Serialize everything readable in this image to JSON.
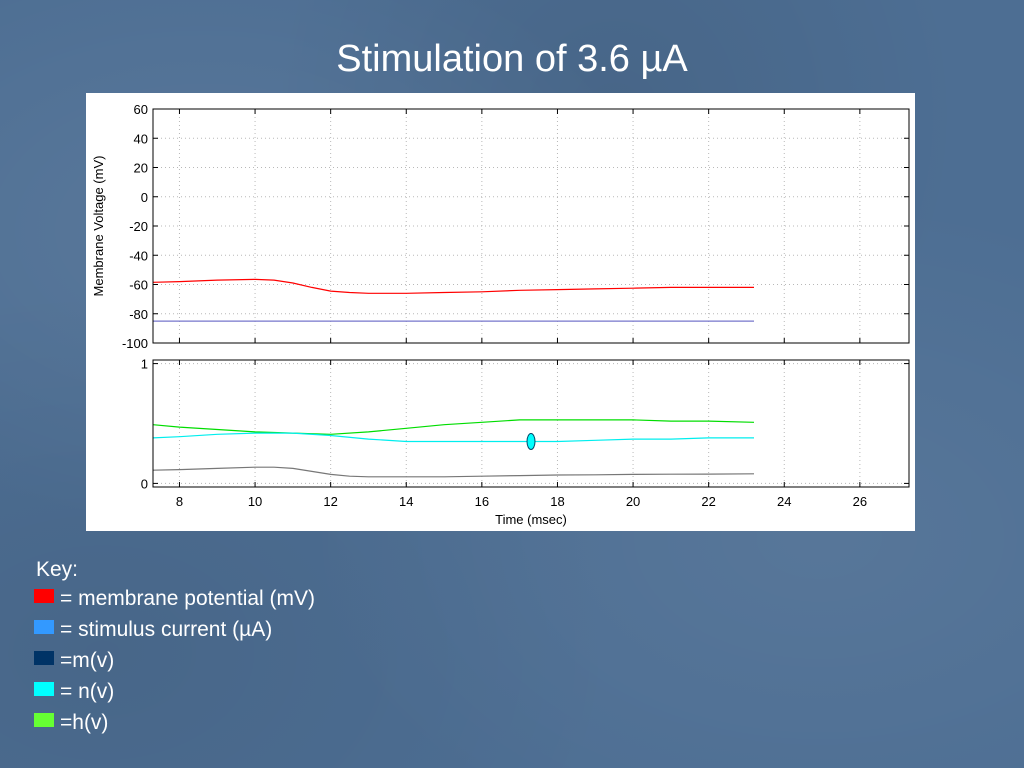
{
  "slide": {
    "title": "Stimulation of 3.6 µA"
  },
  "key": {
    "title": "Key:",
    "items": [
      {
        "label": "= membrane potential (mV)",
        "color": "#ff0000"
      },
      {
        "label": "= stimulus current (µA)",
        "color": "#3399ff"
      },
      {
        "label": "=m(v)",
        "color": "#003366"
      },
      {
        "label": "= n(v)",
        "color": "#00ffff"
      },
      {
        "label": "=h(v)",
        "color": "#66ff33"
      }
    ]
  },
  "chart_data": [
    {
      "type": "line",
      "ylabel": "Membrane Voltage (mV)",
      "xlim": [
        7.3,
        27.3
      ],
      "ylim": [
        -100,
        60
      ],
      "yticks": [
        -100,
        -80,
        -60,
        -40,
        -20,
        0,
        20,
        40,
        60
      ],
      "xticks": [
        8,
        10,
        12,
        14,
        16,
        18,
        20,
        22,
        24,
        26
      ],
      "grid": true,
      "series": [
        {
          "color": "#ff0000",
          "x": [
            7.3,
            8,
            9,
            10,
            10.5,
            11,
            11.5,
            12,
            12.5,
            13,
            13.5,
            14,
            15,
            16,
            17,
            18,
            19,
            20,
            21,
            22,
            23.2
          ],
          "y": [
            -58.5,
            -58.0,
            -57.0,
            -56.5,
            -57.0,
            -59.0,
            -62.0,
            -64.5,
            -65.5,
            -66.0,
            -66.0,
            -66.0,
            -65.5,
            -65.0,
            -64.0,
            -63.5,
            -63.0,
            -62.5,
            -62.0,
            -62.0,
            -62.0
          ]
        },
        {
          "color": "#7777cc",
          "x": [
            7.3,
            23.2
          ],
          "y": [
            -85.0,
            -85.0
          ]
        }
      ]
    },
    {
      "type": "line",
      "xlabel": "Time (msec)",
      "xlim": [
        7.3,
        27.3
      ],
      "ylim": [
        -0.03,
        1.03
      ],
      "yticks": [
        0,
        1
      ],
      "xticks": [
        8,
        10,
        12,
        14,
        16,
        18,
        20,
        22,
        24,
        26
      ],
      "grid": true,
      "annotation": {
        "x": 17.3,
        "y": 0.35,
        "color": "#00ffff"
      },
      "series": [
        {
          "color": "#00dd00",
          "x": [
            7.3,
            8,
            9,
            10,
            11,
            12,
            13,
            14,
            15,
            16,
            17,
            18,
            19,
            20,
            21,
            22,
            23.2
          ],
          "y": [
            0.49,
            0.47,
            0.45,
            0.43,
            0.42,
            0.41,
            0.43,
            0.46,
            0.49,
            0.51,
            0.53,
            0.53,
            0.53,
            0.53,
            0.52,
            0.52,
            0.51
          ]
        },
        {
          "color": "#00eeee",
          "x": [
            7.3,
            8,
            9,
            10,
            11,
            12,
            13,
            14,
            15,
            16,
            17,
            18,
            19,
            20,
            21,
            22,
            23.2
          ],
          "y": [
            0.38,
            0.39,
            0.41,
            0.42,
            0.42,
            0.4,
            0.37,
            0.35,
            0.35,
            0.35,
            0.35,
            0.35,
            0.36,
            0.37,
            0.37,
            0.38,
            0.38
          ]
        },
        {
          "color": "#777777",
          "x": [
            7.3,
            8,
            9,
            10,
            10.5,
            11,
            11.5,
            12,
            12.5,
            13,
            14,
            15,
            16,
            17,
            18,
            19,
            20,
            21,
            22,
            23.2
          ],
          "y": [
            0.11,
            0.115,
            0.125,
            0.135,
            0.135,
            0.125,
            0.1,
            0.075,
            0.06,
            0.055,
            0.055,
            0.055,
            0.06,
            0.065,
            0.07,
            0.072,
            0.075,
            0.077,
            0.078,
            0.08
          ]
        }
      ]
    }
  ]
}
